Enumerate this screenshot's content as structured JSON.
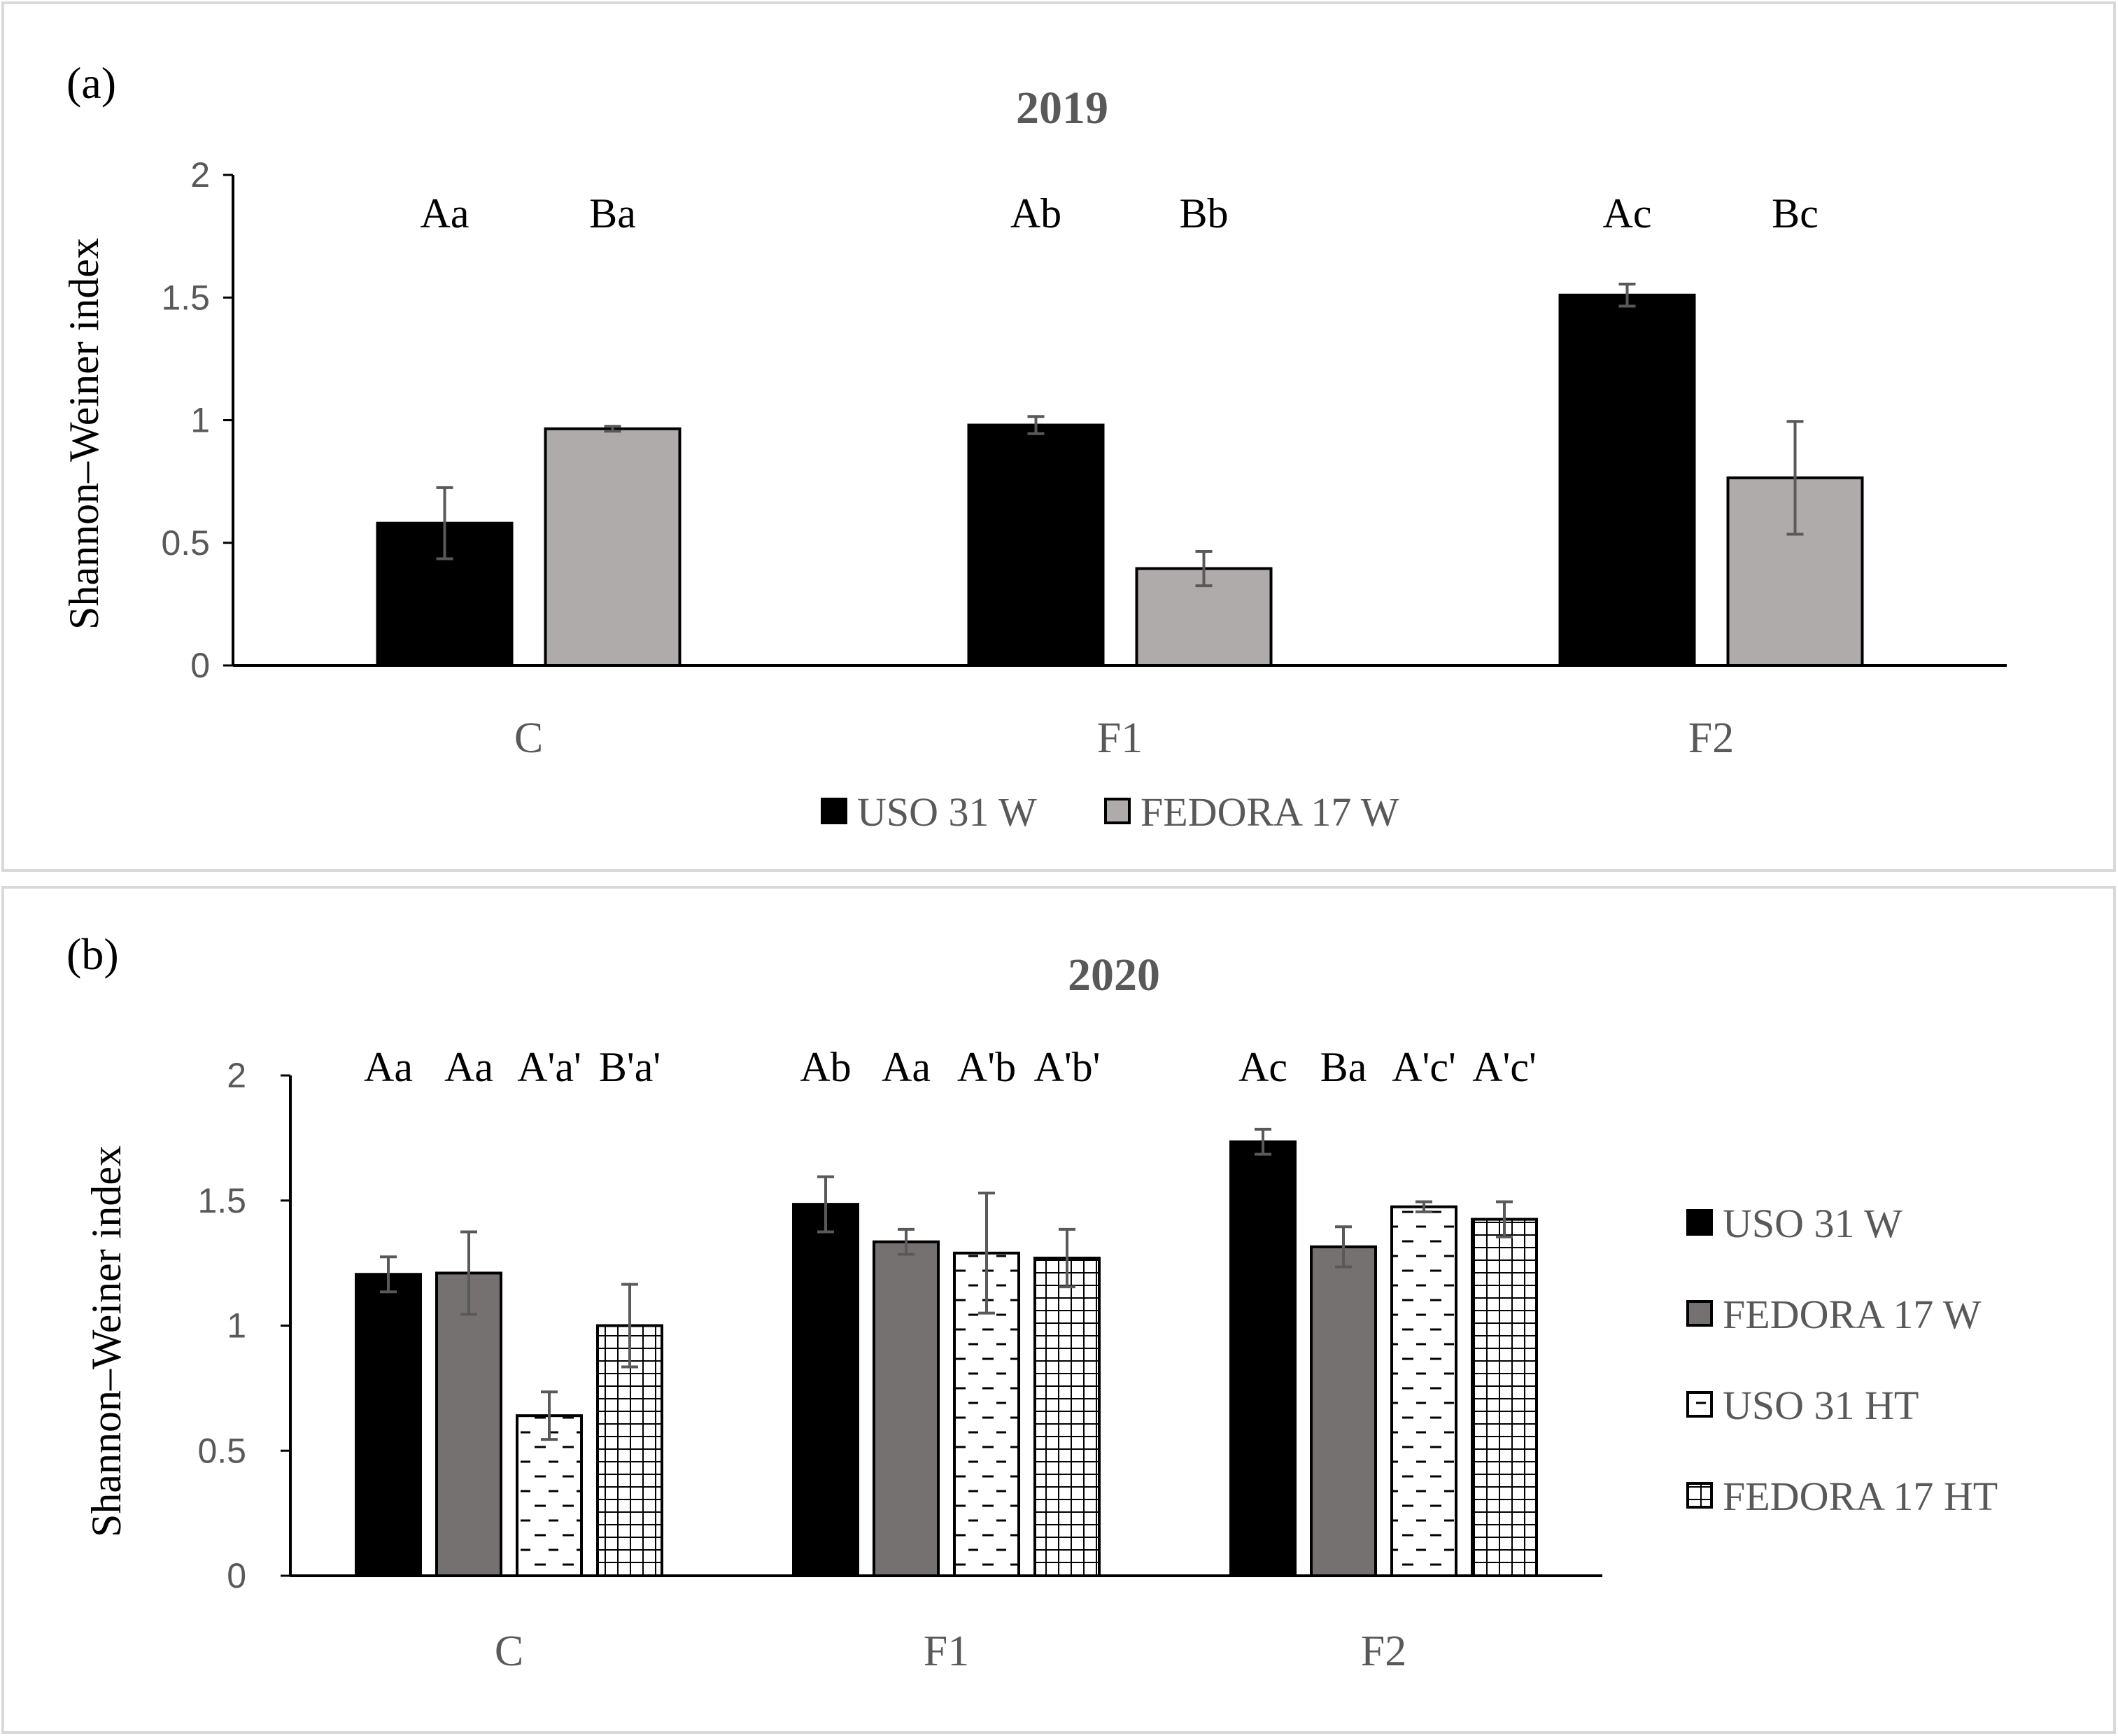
{
  "chart_data": [
    {
      "type": "bar",
      "panel_label": "(a)",
      "title": "2019",
      "xlabel": "",
      "ylabel": "Shannon–Weiner index",
      "ylim": [
        0,
        2
      ],
      "yticks": [
        "0",
        "0.5",
        "1",
        "1.5",
        "2"
      ],
      "categories": [
        "C",
        "F1",
        "F2"
      ],
      "legend_position": "bottom",
      "series": [
        {
          "name": "USO 31 W",
          "fill": "black",
          "values": [
            0.58,
            0.98,
            1.51
          ],
          "errors": [
            0.145,
            0.035,
            0.045
          ]
        },
        {
          "name": "FEDORA 17 W",
          "fill": "lightgray",
          "values": [
            0.965,
            0.395,
            0.765
          ],
          "errors": [
            0.01,
            0.07,
            0.23
          ]
        }
      ],
      "annotations": [
        [
          "Aa",
          "Ba"
        ],
        [
          "Ab",
          "Bb"
        ],
        [
          "Ac",
          "Bc"
        ]
      ]
    },
    {
      "type": "bar",
      "panel_label": "(b)",
      "title": "2020",
      "xlabel": "",
      "ylabel": "Shannon–Weiner index",
      "ylim": [
        0,
        2
      ],
      "yticks": [
        "0",
        "0.5",
        "1",
        "1.5",
        "2"
      ],
      "categories": [
        "C",
        "F1",
        "F2"
      ],
      "legend_position": "right",
      "series": [
        {
          "name": "USO 31 W",
          "fill": "black",
          "values": [
            1.205,
            1.485,
            1.735
          ],
          "errors": [
            0.07,
            0.11,
            0.05
          ]
        },
        {
          "name": "FEDORA 17 W",
          "fill": "gray",
          "values": [
            1.21,
            1.335,
            1.315
          ],
          "errors": [
            0.165,
            0.05,
            0.08
          ]
        },
        {
          "name": "USO 31 HT",
          "fill": "dashes",
          "values": [
            0.64,
            1.29,
            1.475
          ],
          "errors": [
            0.095,
            0.24,
            0.02
          ]
        },
        {
          "name": "FEDORA 17 HT",
          "fill": "grid",
          "values": [
            1.0,
            1.27,
            1.425
          ],
          "errors": [
            0.165,
            0.115,
            0.07
          ]
        }
      ],
      "annotations": [
        [
          "Aa",
          "Aa",
          "A'a'",
          "B'a'"
        ],
        [
          "Ab",
          "Aa",
          "A'b",
          "A'b'"
        ],
        [
          "Ac",
          "Ba",
          "A'c'",
          "A'c'"
        ]
      ]
    }
  ],
  "colors": {
    "black": "#000000",
    "lightgray": "#afabab",
    "gray": "#767171",
    "axis_text": "#595959",
    "frame": "#d9d9d9",
    "error_bar": "#595959"
  }
}
